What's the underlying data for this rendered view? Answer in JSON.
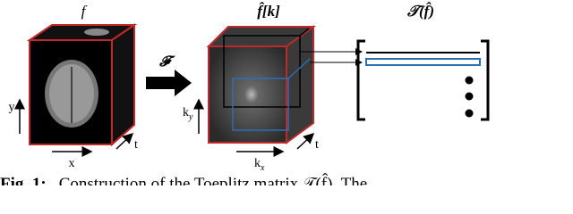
{
  "labels": {
    "image": "f",
    "kspace": "f̂[k]",
    "toeplitz": "𝒯(f̂)",
    "fourier": "𝓕",
    "axis_y": "y",
    "axis_x": "x",
    "axis_t_left": "t",
    "axis_ky": {
      "base": "k",
      "sub": "y"
    },
    "axis_kx": {
      "base": "k",
      "sub": "x"
    },
    "axis_t_right": "t"
  },
  "caption": {
    "label": "Fig. 1:",
    "text": "Construction of the Toeplitz matrix 𝒯(f̂). The"
  }
}
